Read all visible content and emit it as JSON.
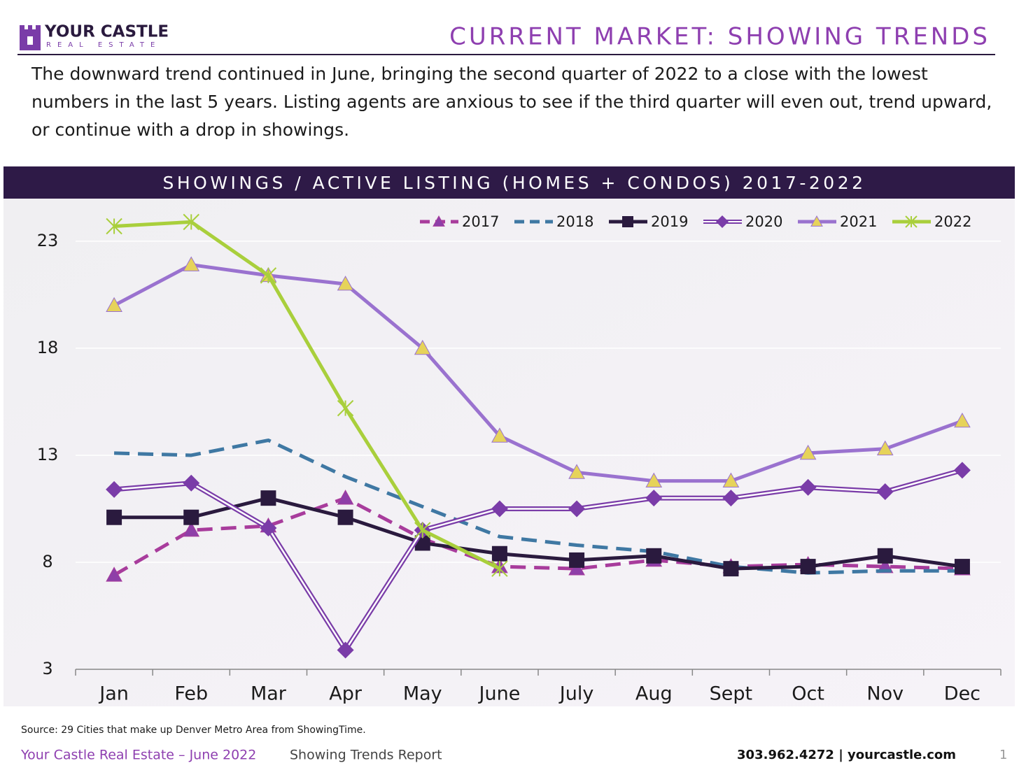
{
  "header": {
    "logo_name": "YOUR CASTLE",
    "logo_sub": "REAL ESTATE",
    "title": "CURRENT MARKET: SHOWING TRENDS"
  },
  "intro": "The downward trend continued in June, bringing the second quarter of 2022 to a close with the lowest numbers in the last 5 years. Listing agents are anxious to see if the third quarter will even out, trend upward, or continue with a drop in showings.",
  "chart_data": {
    "type": "line",
    "title": "SHOWINGS / ACTIVE LISTING (HOMES + CONDOS) 2017-2022",
    "categories": [
      "Jan",
      "Feb",
      "Mar",
      "Apr",
      "May",
      "June",
      "July",
      "Aug",
      "Sept",
      "Oct",
      "Nov",
      "Dec"
    ],
    "ylim": [
      3,
      24.5
    ],
    "yticks": [
      3,
      8,
      13,
      18,
      23
    ],
    "grid": true,
    "legend": "top-right",
    "series": [
      {
        "name": "2017",
        "color": "#a83c9c",
        "marker_color": "#8e3fa8",
        "line_style": "dashed",
        "marker": "triangle",
        "values": [
          7.4,
          9.5,
          9.7,
          11.0,
          9.1,
          7.8,
          7.7,
          8.1,
          7.8,
          7.9,
          7.8,
          7.7
        ]
      },
      {
        "name": "2018",
        "color": "#3f78a3",
        "marker_color": "#3f78a3",
        "line_style": "dashed",
        "marker": "none",
        "values": [
          13.1,
          13.0,
          13.7,
          12.0,
          10.6,
          9.2,
          8.8,
          8.5,
          7.8,
          7.5,
          7.6,
          7.6
        ]
      },
      {
        "name": "2019",
        "color": "#2a1a3e",
        "marker_color": "#2a1a3e",
        "line_style": "solid",
        "marker": "square",
        "values": [
          10.1,
          10.1,
          11.0,
          10.1,
          8.9,
          8.4,
          8.1,
          8.3,
          7.7,
          7.8,
          8.3,
          7.8
        ]
      },
      {
        "name": "2020",
        "color": "#7a3ca8",
        "marker_color": "#7a3ca8",
        "line_style": "double",
        "marker": "diamond",
        "values": [
          11.4,
          11.7,
          9.6,
          3.9,
          9.5,
          10.5,
          10.5,
          11.0,
          11.0,
          11.5,
          11.3,
          12.3
        ]
      },
      {
        "name": "2021",
        "color": "#9a72cf",
        "marker_color": "#e6d35a",
        "line_style": "solid",
        "marker": "triangle",
        "values": [
          20.0,
          21.9,
          21.4,
          21.0,
          18.0,
          13.9,
          12.2,
          11.8,
          11.8,
          13.1,
          13.3,
          14.6
        ]
      },
      {
        "name": "2022",
        "color": "#a9cf3c",
        "marker_color": "#a9cf3c",
        "line_style": "solid",
        "marker": "star",
        "values": [
          23.7,
          23.9,
          21.4,
          15.2,
          9.5,
          7.7,
          null,
          null,
          null,
          null,
          null,
          null
        ]
      }
    ]
  },
  "source": "Source: 29 Cities that make up Denver Metro Area from ShowingTime.",
  "footer": {
    "brand": "Your Castle Real Estate – June 2022",
    "report": "Showing Trends Report",
    "contact": "303.962.4272 | yourcastle.com",
    "page": "1"
  }
}
